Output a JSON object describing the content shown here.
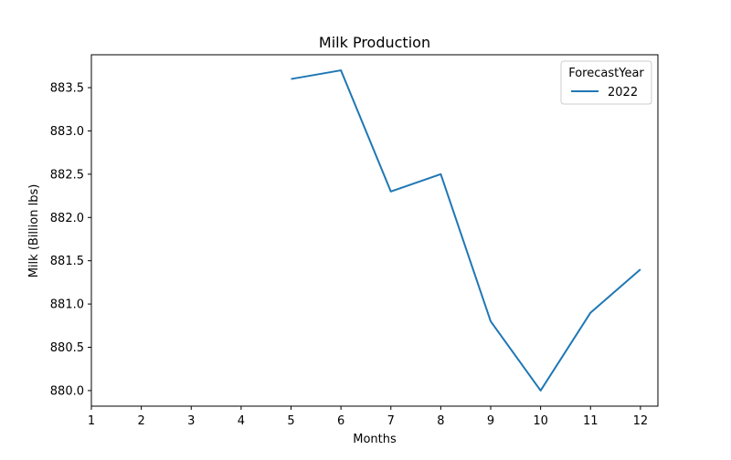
{
  "chart_data": {
    "type": "line",
    "title": "Milk Production",
    "xlabel": "Months",
    "ylabel": "Milk (Billion lbs)",
    "x_ticks": [
      1,
      2,
      3,
      4,
      5,
      6,
      7,
      8,
      9,
      10,
      11,
      12
    ],
    "x_tick_labels": [
      "1",
      "2",
      "3",
      "4",
      "5",
      "6",
      "7",
      "8",
      "9",
      "10",
      "11",
      "12"
    ],
    "y_ticks": [
      880.0,
      880.5,
      881.0,
      881.5,
      882.0,
      882.5,
      883.0,
      883.5
    ],
    "y_tick_labels": [
      "880.0",
      "880.5",
      "881.0",
      "881.5",
      "882.0",
      "882.5",
      "883.0",
      "883.5"
    ],
    "xlim": [
      1,
      12.35
    ],
    "ylim": [
      879.82,
      883.88
    ],
    "grid": false,
    "legend": {
      "title": "ForecastYear",
      "position": "top-right"
    },
    "series": [
      {
        "name": "2022",
        "color": "#1f77b4",
        "x": [
          5,
          6,
          7,
          8,
          9,
          10,
          11,
          12
        ],
        "y": [
          883.6,
          883.7,
          882.3,
          882.5,
          880.8,
          880.0,
          880.9,
          881.4
        ]
      }
    ]
  }
}
